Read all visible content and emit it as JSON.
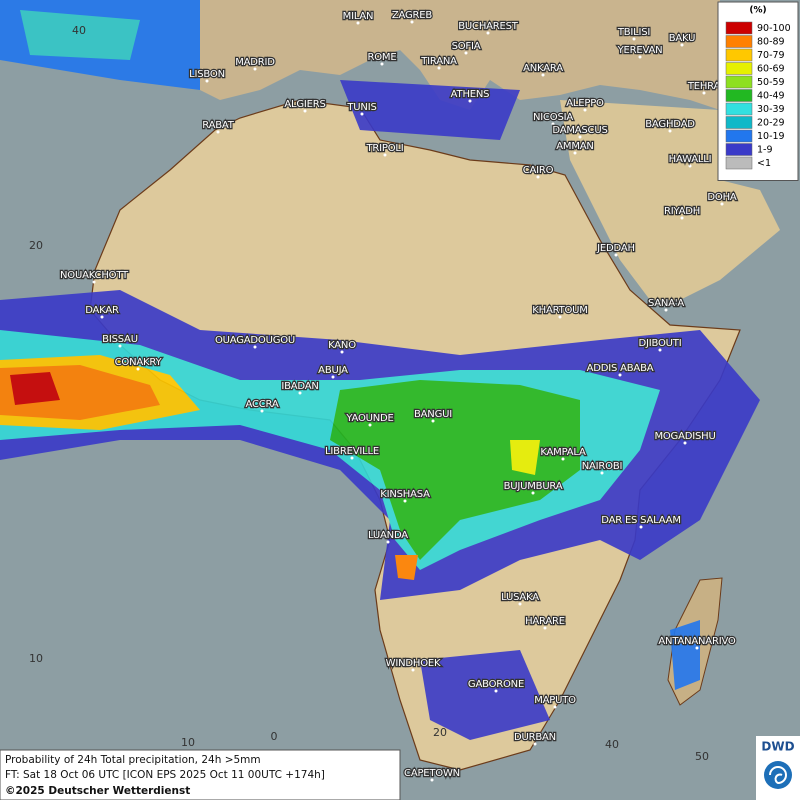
{
  "legend": {
    "title": "(%)",
    "items": [
      {
        "label": "90-100",
        "color": "#cc0000"
      },
      {
        "label": "80-89",
        "color": "#ff8000"
      },
      {
        "label": "70-79",
        "color": "#ffc800"
      },
      {
        "label": "60-69",
        "color": "#e6f000"
      },
      {
        "label": "50-59",
        "color": "#8ee020"
      },
      {
        "label": "40-49",
        "color": "#22b822"
      },
      {
        "label": "30-39",
        "color": "#33e0e0"
      },
      {
        "label": "20-29",
        "color": "#10b8c8"
      },
      {
        "label": "10-19",
        "color": "#2277ee"
      },
      {
        "label": "1-9",
        "color": "#3a3ac8"
      },
      {
        "label": "<1",
        "color": "#bbbbbb"
      }
    ]
  },
  "cities": [
    "MILAN",
    "ZAGREB",
    "BUCHAREST",
    "TBILISI",
    "BAKU",
    "ROME",
    "SOFIA",
    "YEREVAN",
    "MADRID",
    "TIRANA",
    "ANKARA",
    "LISBON",
    "ATHENS",
    "TEHRA",
    "ALGIERS",
    "TUNIS",
    "ALEPPO",
    "RABAT",
    "NICOSIA",
    "BAGHDAD",
    "DAMASCUS",
    "TRIPOLI",
    "AMMAN",
    "HAWALLI",
    "CAIRO",
    "DOHA",
    "RIYADH",
    "JEDDAH",
    "NOUAKCHOTT",
    "DAKAR",
    "KHARTOUM",
    "SANA'A",
    "BISSAU",
    "OUAGADOUGOU",
    "KANO",
    "DJIBOUTI",
    "CONAKRY",
    "ABUJA",
    "ADDIS ABABA",
    "IBADAN",
    "ACCRA",
    "BANGUI",
    "YAOUNDE",
    "MOGADISHU",
    "LIBREVILLE",
    "KAMPALA",
    "NAIROBI",
    "BUJUMBURA",
    "KINSHASA",
    "DAR ES SALAAM",
    "LUANDA",
    "LUSAKA",
    "HARARE",
    "ANTANANARIVO",
    "WINDHOEK",
    "GABORONE",
    "MAPUTO",
    "DURBAN",
    "CAPETOWN"
  ],
  "grid_labels": [
    "40",
    "20",
    "10",
    "10",
    "0",
    "20",
    "40",
    "50"
  ],
  "caption": [
    "Probability of 24h Total precipitation, 24h >5mm",
    "FT: Sat 18 Oct 06 UTC [ICON EPS 2025 Oct 11 00UTC +174h]",
    "©2025 Deutscher Wetterdienst"
  ],
  "logo": "DWD"
}
